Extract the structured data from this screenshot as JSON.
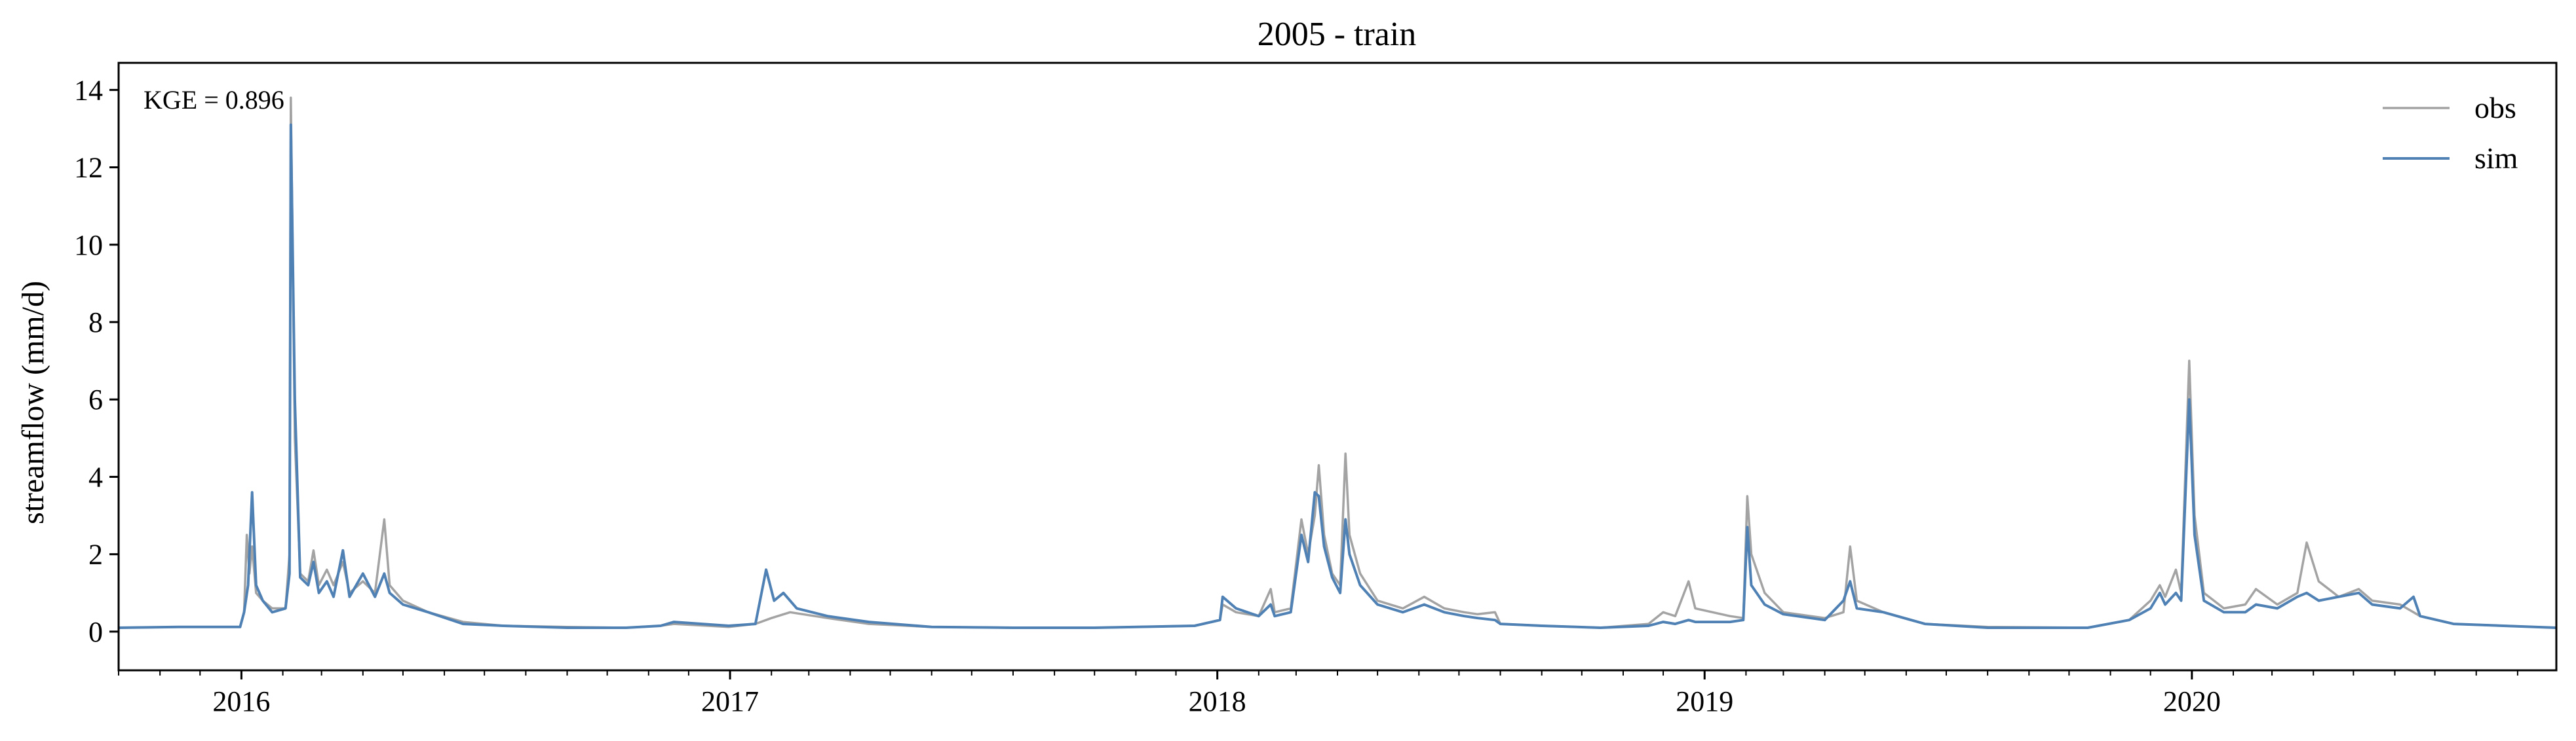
{
  "chart_data": {
    "type": "line",
    "title": "2005 - train",
    "xlabel": "",
    "ylabel": "streamflow (mm/d)",
    "xlim": [
      "2015-10-01",
      "2020-09-30"
    ],
    "ylim": [
      -1,
      14.7
    ],
    "x_ticks": [
      {
        "date": "2016-01-01",
        "label": "2016"
      },
      {
        "date": "2017-01-01",
        "label": "2017"
      },
      {
        "date": "2018-01-01",
        "label": "2018"
      },
      {
        "date": "2019-01-01",
        "label": "2019"
      },
      {
        "date": "2020-01-01",
        "label": "2020"
      }
    ],
    "y_ticks": [
      0,
      2,
      4,
      6,
      8,
      10,
      12,
      14
    ],
    "annotation": "KGE = 0.896",
    "legend_position": "top-right",
    "grid": false,
    "series": [
      {
        "name": "obs",
        "color": "#a3a3a3",
        "points": [
          [
            "2015-10-01",
            0.1
          ],
          [
            "2015-11-15",
            0.12
          ],
          [
            "2015-12-31",
            0.12
          ],
          [
            "2016-01-03",
            0.5
          ],
          [
            "2016-01-05",
            2.5
          ],
          [
            "2016-01-07",
            1.5
          ],
          [
            "2016-01-09",
            2.2
          ],
          [
            "2016-01-12",
            1.0
          ],
          [
            "2016-01-17",
            0.8
          ],
          [
            "2016-01-24",
            0.6
          ],
          [
            "2016-02-03",
            0.6
          ],
          [
            "2016-02-06",
            2.0
          ],
          [
            "2016-02-07",
            13.8
          ],
          [
            "2016-02-10",
            5.0
          ],
          [
            "2016-02-14",
            1.5
          ],
          [
            "2016-02-20",
            1.3
          ],
          [
            "2016-02-24",
            2.1
          ],
          [
            "2016-02-28",
            1.2
          ],
          [
            "2016-03-05",
            1.6
          ],
          [
            "2016-03-10",
            1.2
          ],
          [
            "2016-03-17",
            1.8
          ],
          [
            "2016-03-22",
            1.0
          ],
          [
            "2016-04-01",
            1.3
          ],
          [
            "2016-04-10",
            1.0
          ],
          [
            "2016-04-17",
            2.9
          ],
          [
            "2016-04-21",
            1.2
          ],
          [
            "2016-05-01",
            0.8
          ],
          [
            "2016-05-20",
            0.5
          ],
          [
            "2016-06-15",
            0.25
          ],
          [
            "2016-07-15",
            0.15
          ],
          [
            "2016-09-01",
            0.12
          ],
          [
            "2016-10-15",
            0.1
          ],
          [
            "2016-11-10",
            0.15
          ],
          [
            "2016-11-20",
            0.2
          ],
          [
            "2016-12-31",
            0.12
          ],
          [
            "2017-01-20",
            0.2
          ],
          [
            "2017-02-01",
            0.35
          ],
          [
            "2017-02-15",
            0.5
          ],
          [
            "2017-03-15",
            0.35
          ],
          [
            "2017-04-15",
            0.2
          ],
          [
            "2017-06-01",
            0.12
          ],
          [
            "2017-08-01",
            0.1
          ],
          [
            "2017-10-01",
            0.1
          ],
          [
            "2017-12-15",
            0.15
          ],
          [
            "2018-01-03",
            0.3
          ],
          [
            "2018-01-05",
            0.7
          ],
          [
            "2018-01-15",
            0.5
          ],
          [
            "2018-02-01",
            0.4
          ],
          [
            "2018-02-10",
            1.1
          ],
          [
            "2018-02-13",
            0.5
          ],
          [
            "2018-02-25",
            0.6
          ],
          [
            "2018-03-05",
            2.9
          ],
          [
            "2018-03-10",
            2.0
          ],
          [
            "2018-03-15",
            3.0
          ],
          [
            "2018-03-18",
            4.3
          ],
          [
            "2018-03-22",
            2.5
          ],
          [
            "2018-03-28",
            1.5
          ],
          [
            "2018-04-03",
            1.2
          ],
          [
            "2018-04-07",
            4.6
          ],
          [
            "2018-04-10",
            2.5
          ],
          [
            "2018-04-18",
            1.5
          ],
          [
            "2018-05-01",
            0.8
          ],
          [
            "2018-05-20",
            0.6
          ],
          [
            "2018-06-05",
            0.9
          ],
          [
            "2018-06-20",
            0.6
          ],
          [
            "2018-07-05",
            0.5
          ],
          [
            "2018-07-15",
            0.45
          ],
          [
            "2018-07-28",
            0.5
          ],
          [
            "2018-08-01",
            0.2
          ],
          [
            "2018-09-01",
            0.15
          ],
          [
            "2018-10-15",
            0.1
          ],
          [
            "2018-11-20",
            0.2
          ],
          [
            "2018-12-01",
            0.5
          ],
          [
            "2018-12-10",
            0.4
          ],
          [
            "2018-12-20",
            1.3
          ],
          [
            "2018-12-25",
            0.6
          ],
          [
            "2019-01-20",
            0.4
          ],
          [
            "2019-01-30",
            0.35
          ],
          [
            "2019-02-02",
            3.5
          ],
          [
            "2019-02-05",
            2.0
          ],
          [
            "2019-02-15",
            1.0
          ],
          [
            "2019-03-01",
            0.5
          ],
          [
            "2019-04-01",
            0.35
          ],
          [
            "2019-04-15",
            0.5
          ],
          [
            "2019-04-20",
            2.2
          ],
          [
            "2019-04-25",
            0.8
          ],
          [
            "2019-05-15",
            0.5
          ],
          [
            "2019-06-15",
            0.2
          ],
          [
            "2019-08-01",
            0.12
          ],
          [
            "2019-10-15",
            0.1
          ],
          [
            "2019-11-15",
            0.3
          ],
          [
            "2019-12-01",
            0.8
          ],
          [
            "2019-12-08",
            1.2
          ],
          [
            "2019-12-12",
            0.9
          ],
          [
            "2019-12-20",
            1.6
          ],
          [
            "2019-12-24",
            1.0
          ],
          [
            "2019-12-30",
            7.0
          ],
          [
            "2020-01-03",
            3.0
          ],
          [
            "2020-01-10",
            1.0
          ],
          [
            "2020-01-25",
            0.6
          ],
          [
            "2020-02-10",
            0.7
          ],
          [
            "2020-02-18",
            1.1
          ],
          [
            "2020-03-05",
            0.7
          ],
          [
            "2020-03-20",
            1.0
          ],
          [
            "2020-03-27",
            2.3
          ],
          [
            "2020-04-05",
            1.3
          ],
          [
            "2020-04-20",
            0.9
          ],
          [
            "2020-05-05",
            1.1
          ],
          [
            "2020-05-15",
            0.8
          ],
          [
            "2020-06-05",
            0.7
          ],
          [
            "2020-06-20",
            0.4
          ],
          [
            "2020-07-15",
            0.2
          ],
          [
            "2020-09-30",
            0.1
          ]
        ]
      },
      {
        "name": "sim",
        "color": "#4f81b4",
        "points": [
          [
            "2015-10-01",
            0.1
          ],
          [
            "2015-11-15",
            0.12
          ],
          [
            "2015-12-31",
            0.12
          ],
          [
            "2016-01-03",
            0.5
          ],
          [
            "2016-01-06",
            1.2
          ],
          [
            "2016-01-09",
            3.6
          ],
          [
            "2016-01-12",
            1.2
          ],
          [
            "2016-01-17",
            0.8
          ],
          [
            "2016-01-24",
            0.5
          ],
          [
            "2016-02-03",
            0.6
          ],
          [
            "2016-02-06",
            1.5
          ],
          [
            "2016-02-07",
            13.1
          ],
          [
            "2016-02-10",
            6.0
          ],
          [
            "2016-02-14",
            1.4
          ],
          [
            "2016-02-20",
            1.2
          ],
          [
            "2016-02-24",
            1.8
          ],
          [
            "2016-02-28",
            1.0
          ],
          [
            "2016-03-05",
            1.3
          ],
          [
            "2016-03-10",
            0.9
          ],
          [
            "2016-03-17",
            2.1
          ],
          [
            "2016-03-22",
            0.9
          ],
          [
            "2016-04-01",
            1.5
          ],
          [
            "2016-04-10",
            0.9
          ],
          [
            "2016-04-17",
            1.5
          ],
          [
            "2016-04-21",
            1.0
          ],
          [
            "2016-05-01",
            0.7
          ],
          [
            "2016-05-20",
            0.5
          ],
          [
            "2016-06-15",
            0.2
          ],
          [
            "2016-07-15",
            0.15
          ],
          [
            "2016-09-01",
            0.1
          ],
          [
            "2016-10-15",
            0.1
          ],
          [
            "2016-11-10",
            0.15
          ],
          [
            "2016-11-20",
            0.25
          ],
          [
            "2016-12-31",
            0.15
          ],
          [
            "2017-01-20",
            0.2
          ],
          [
            "2017-01-28",
            1.6
          ],
          [
            "2017-02-03",
            0.8
          ],
          [
            "2017-02-10",
            1.0
          ],
          [
            "2017-02-20",
            0.6
          ],
          [
            "2017-03-15",
            0.4
          ],
          [
            "2017-04-15",
            0.25
          ],
          [
            "2017-06-01",
            0.12
          ],
          [
            "2017-08-01",
            0.1
          ],
          [
            "2017-10-01",
            0.1
          ],
          [
            "2017-12-15",
            0.15
          ],
          [
            "2018-01-03",
            0.3
          ],
          [
            "2018-01-05",
            0.9
          ],
          [
            "2018-01-15",
            0.6
          ],
          [
            "2018-02-01",
            0.4
          ],
          [
            "2018-02-10",
            0.7
          ],
          [
            "2018-02-13",
            0.4
          ],
          [
            "2018-02-25",
            0.5
          ],
          [
            "2018-03-05",
            2.5
          ],
          [
            "2018-03-10",
            1.8
          ],
          [
            "2018-03-15",
            3.6
          ],
          [
            "2018-03-18",
            3.5
          ],
          [
            "2018-03-22",
            2.2
          ],
          [
            "2018-03-28",
            1.4
          ],
          [
            "2018-04-03",
            1.0
          ],
          [
            "2018-04-07",
            2.9
          ],
          [
            "2018-04-10",
            2.0
          ],
          [
            "2018-04-18",
            1.2
          ],
          [
            "2018-05-01",
            0.7
          ],
          [
            "2018-05-20",
            0.5
          ],
          [
            "2018-06-05",
            0.7
          ],
          [
            "2018-06-20",
            0.5
          ],
          [
            "2018-07-05",
            0.4
          ],
          [
            "2018-07-15",
            0.35
          ],
          [
            "2018-07-28",
            0.3
          ],
          [
            "2018-08-01",
            0.2
          ],
          [
            "2018-09-01",
            0.15
          ],
          [
            "2018-10-15",
            0.1
          ],
          [
            "2018-11-20",
            0.15
          ],
          [
            "2018-12-01",
            0.25
          ],
          [
            "2018-12-10",
            0.2
          ],
          [
            "2018-12-20",
            0.3
          ],
          [
            "2018-12-25",
            0.25
          ],
          [
            "2019-01-20",
            0.25
          ],
          [
            "2019-01-30",
            0.3
          ],
          [
            "2019-02-02",
            2.7
          ],
          [
            "2019-02-05",
            1.2
          ],
          [
            "2019-02-15",
            0.7
          ],
          [
            "2019-03-01",
            0.45
          ],
          [
            "2019-04-01",
            0.3
          ],
          [
            "2019-04-15",
            0.8
          ],
          [
            "2019-04-20",
            1.3
          ],
          [
            "2019-04-25",
            0.6
          ],
          [
            "2019-05-15",
            0.5
          ],
          [
            "2019-06-15",
            0.2
          ],
          [
            "2019-08-01",
            0.1
          ],
          [
            "2019-10-15",
            0.1
          ],
          [
            "2019-11-15",
            0.3
          ],
          [
            "2019-12-01",
            0.6
          ],
          [
            "2019-12-08",
            1.0
          ],
          [
            "2019-12-12",
            0.7
          ],
          [
            "2019-12-20",
            1.0
          ],
          [
            "2019-12-24",
            0.8
          ],
          [
            "2019-12-30",
            6.0
          ],
          [
            "2020-01-03",
            2.5
          ],
          [
            "2020-01-10",
            0.8
          ],
          [
            "2020-01-25",
            0.5
          ],
          [
            "2020-02-10",
            0.5
          ],
          [
            "2020-02-18",
            0.7
          ],
          [
            "2020-03-05",
            0.6
          ],
          [
            "2020-03-20",
            0.9
          ],
          [
            "2020-03-27",
            1.0
          ],
          [
            "2020-04-05",
            0.8
          ],
          [
            "2020-04-20",
            0.9
          ],
          [
            "2020-05-05",
            1.0
          ],
          [
            "2020-05-15",
            0.7
          ],
          [
            "2020-06-05",
            0.6
          ],
          [
            "2020-06-15",
            0.9
          ],
          [
            "2020-06-20",
            0.4
          ],
          [
            "2020-07-15",
            0.2
          ],
          [
            "2020-09-30",
            0.1
          ]
        ]
      }
    ]
  }
}
